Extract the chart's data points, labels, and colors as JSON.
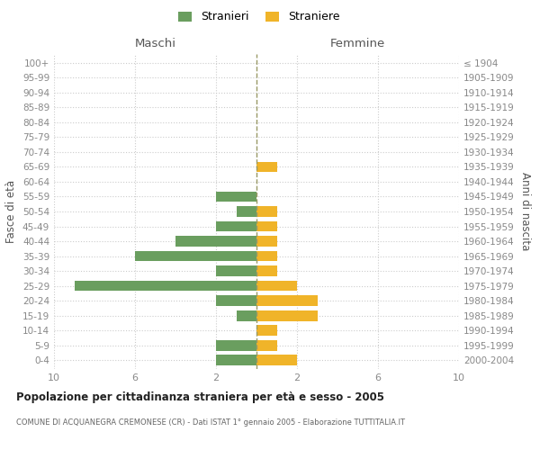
{
  "age_groups": [
    "0-4",
    "5-9",
    "10-14",
    "15-19",
    "20-24",
    "25-29",
    "30-34",
    "35-39",
    "40-44",
    "45-49",
    "50-54",
    "55-59",
    "60-64",
    "65-69",
    "70-74",
    "75-79",
    "80-84",
    "85-89",
    "90-94",
    "95-99",
    "100+"
  ],
  "birth_years": [
    "2000-2004",
    "1995-1999",
    "1990-1994",
    "1985-1989",
    "1980-1984",
    "1975-1979",
    "1970-1974",
    "1965-1969",
    "1960-1964",
    "1955-1959",
    "1950-1954",
    "1945-1949",
    "1940-1944",
    "1935-1939",
    "1930-1934",
    "1925-1929",
    "1920-1924",
    "1915-1919",
    "1910-1914",
    "1905-1909",
    "≤ 1904"
  ],
  "maschi": [
    2,
    2,
    0,
    1,
    2,
    9,
    2,
    6,
    4,
    2,
    1,
    2,
    0,
    0,
    0,
    0,
    0,
    0,
    0,
    0,
    0
  ],
  "femmine": [
    2,
    1,
    1,
    3,
    3,
    2,
    1,
    1,
    1,
    1,
    1,
    0,
    0,
    1,
    0,
    0,
    0,
    0,
    0,
    0,
    0
  ],
  "male_color": "#6a9e5f",
  "female_color": "#f0b429",
  "center_line_color": "#999966",
  "grid_color": "#cccccc",
  "bg_color": "#ffffff",
  "title": "Popolazione per cittadinanza straniera per età e sesso - 2005",
  "subtitle": "COMUNE DI ACQUANEGRA CREMONESE (CR) - Dati ISTAT 1° gennaio 2005 - Elaborazione TUTTITALIA.IT",
  "legend_maschi": "Stranieri",
  "legend_femmine": "Straniere",
  "xlabel_left": "Maschi",
  "xlabel_right": "Femmine",
  "ylabel_left": "Fasce di età",
  "ylabel_right": "Anni di nascita",
  "xlim": 10
}
